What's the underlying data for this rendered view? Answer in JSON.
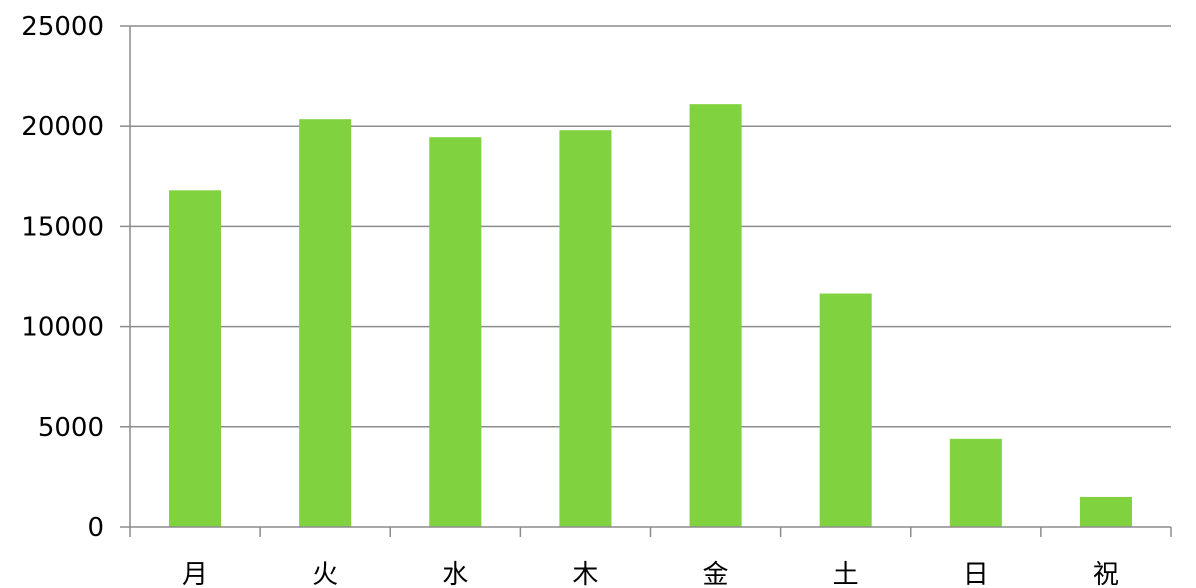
{
  "chart_data": {
    "type": "bar",
    "categories": [
      "月",
      "火",
      "水",
      "木",
      "金",
      "土",
      "日",
      "祝"
    ],
    "series": [
      {
        "values": [
          16800,
          20350,
          19450,
          19800,
          21100,
          11650,
          4400,
          1500
        ],
        "color": "#80d23e"
      }
    ],
    "ylim": [
      0,
      25000
    ],
    "yticks": [
      0,
      5000,
      10000,
      15000,
      20000,
      25000
    ],
    "ytick_labels": [
      "0",
      "5000",
      "10000",
      "15000",
      "20000",
      "25000"
    ],
    "grid": true,
    "legend": "none",
    "gridline_color": "#8c8c8c",
    "axis_color": "#8c8c8c"
  }
}
